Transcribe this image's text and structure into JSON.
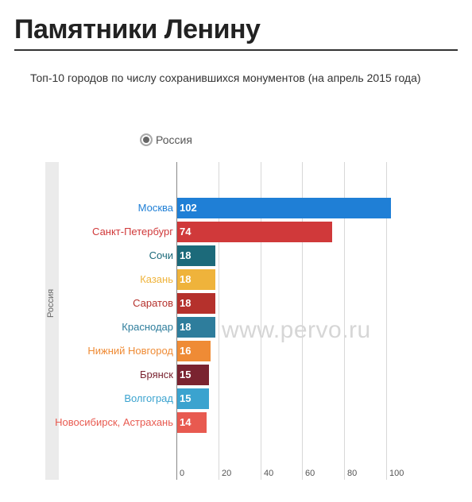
{
  "header": {
    "title": "Памятники Ленину",
    "subtitle": "Топ-10 городов по числу сохранившихся монументов (на апрель 2015 года)"
  },
  "legend": {
    "label": "Россия"
  },
  "watermark": "www.pervo.ru",
  "chart_data": {
    "type": "bar",
    "orientation": "horizontal",
    "group_label": "Россия",
    "categories": [
      "Москва",
      "Санкт-Петербург",
      "Сочи",
      "Казань",
      "Саратов",
      "Краснодар",
      "Нижний Новгород",
      "Брянск",
      "Волгоград",
      "Новосибирск, Астрахань"
    ],
    "values": [
      102,
      74,
      18,
      18,
      18,
      18,
      16,
      15,
      15,
      14
    ],
    "colors": [
      "#1f7fd6",
      "#d0393a",
      "#1c6a7a",
      "#efb33b",
      "#b5312c",
      "#2e7d9c",
      "#ef8b35",
      "#7a2330",
      "#3ba3cf",
      "#e85a50"
    ],
    "xlim": [
      0,
      105
    ],
    "xticks": [
      0,
      20,
      40,
      60,
      80,
      100
    ],
    "grid": true,
    "legend_position": "top"
  }
}
